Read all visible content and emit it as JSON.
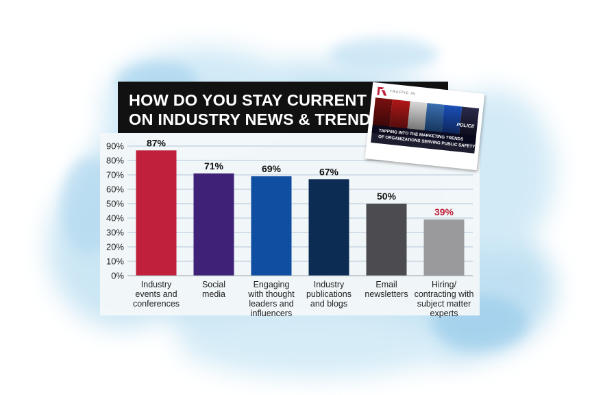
{
  "chart_data": {
    "type": "bar",
    "title": [
      "HOW DO YOU STAY CURRENT",
      "ON INDUSTRY NEWS & TRENDS?"
    ],
    "categories": [
      [
        "Industry",
        "events and",
        "conferences"
      ],
      [
        "Social",
        "media"
      ],
      [
        "Engaging",
        "with thought",
        "leaders and",
        "influencers"
      ],
      [
        "Industry",
        "publications",
        "and blogs"
      ],
      [
        "Email",
        "newsletters"
      ],
      [
        "Hiring/",
        "contracting with",
        "subject matter",
        "experts"
      ]
    ],
    "values": [
      87,
      71,
      69,
      67,
      50,
      39
    ],
    "value_labels": [
      "87%",
      "71%",
      "69%",
      "67%",
      "50%",
      "39%"
    ],
    "colors": [
      "#c0203a",
      "#3f2178",
      "#0f4ea1",
      "#0d2c54",
      "#4c4c50",
      "#9a9a9c"
    ],
    "label_colors": [
      "#111111",
      "#111111",
      "#111111",
      "#111111",
      "#111111",
      "#c0203a"
    ],
    "ylim": [
      0,
      90
    ],
    "yticks": [
      "0%",
      "10%",
      "20%",
      "30%",
      "40%",
      "50%",
      "60%",
      "70%",
      "80%",
      "90%"
    ],
    "grid": true
  },
  "report": {
    "brand": "TRAFFIC IN",
    "line1": "TAPPING INTO THE MARKETING TRENDS",
    "line2": "OF ORGANIZATIONS SERVING PUBLIC SAFETY",
    "badge": "POLICE"
  }
}
